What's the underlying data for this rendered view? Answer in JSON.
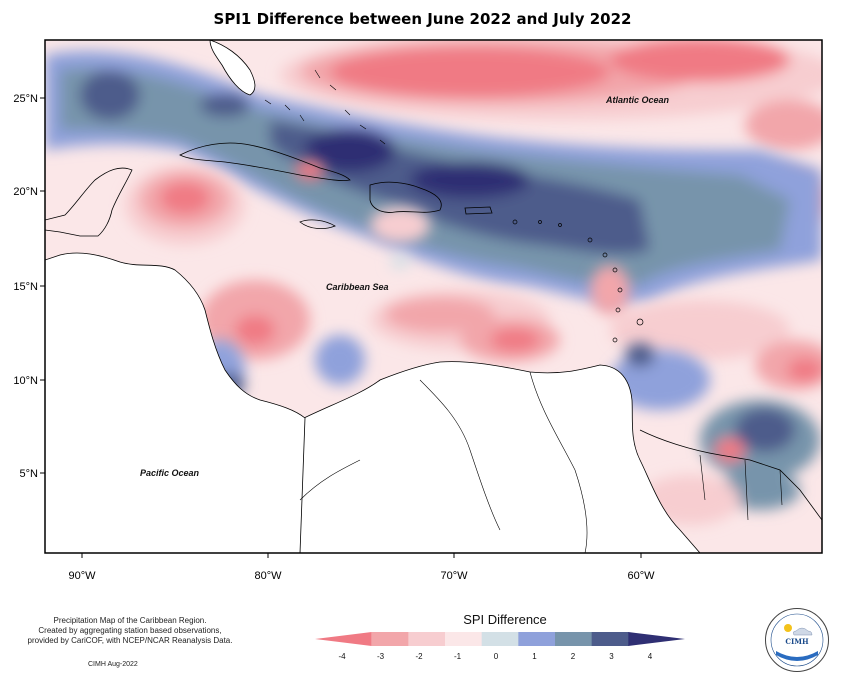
{
  "title": "SPI1 Difference between June 2022 and July 2022",
  "labels": {
    "atlantic": "Atlantic Ocean",
    "caribbean": "Caribbean Sea",
    "pacific": "Pacific Ocean"
  },
  "lat_ticks": [
    "25°N",
    "20°N",
    "15°N",
    "10°N",
    "5°N"
  ],
  "lon_ticks": [
    "90°W",
    "80°W",
    "70°W",
    "60°W"
  ],
  "credit": {
    "line1": "Precipitation Map of the Caribbean Region.",
    "line2": "Created by aggregating station based observations,",
    "line3": "provided by CariCOF, with NCEP/NCAR Reanalysis Data.",
    "cimh": "CIMH Aug-2022"
  },
  "legend": {
    "title": "SPI Difference",
    "ticks": [
      "-4",
      "-3",
      "-2",
      "-1",
      "0",
      "1",
      "2",
      "3",
      "4"
    ],
    "colors": [
      "#f07a84",
      "#f2a6aa",
      "#f7cdd0",
      "#fbe7e8",
      "#d3e0e6",
      "#8fa1db",
      "#7794ab",
      "#4d5c8b",
      "#2f2f73"
    ]
  },
  "logo": {
    "text": "CIMH"
  }
}
